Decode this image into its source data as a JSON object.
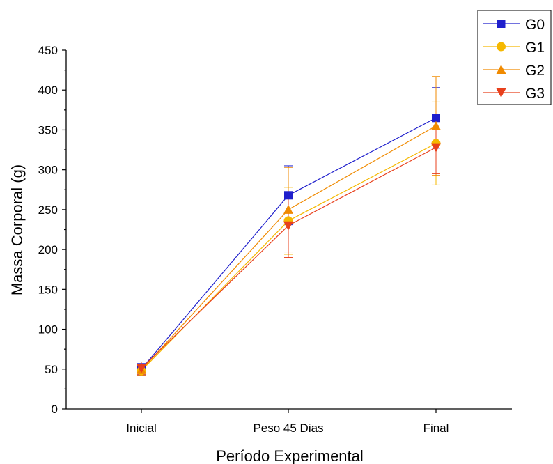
{
  "chart_data": {
    "type": "line",
    "categories": [
      "Inicial",
      "Peso 45 Dias",
      "Final"
    ],
    "xlabel": "Período Experimental",
    "ylabel": "Massa Corporal (g)",
    "ylim": [
      0,
      450
    ],
    "yticks": [
      0,
      50,
      100,
      150,
      200,
      250,
      300,
      350,
      400,
      450
    ],
    "grid": false,
    "legend_position": "top-right",
    "series": [
      {
        "name": "G0",
        "color": "#1f1fcc",
        "marker": "square",
        "values": [
          50,
          268,
          365
        ],
        "errors": [
          7,
          37,
          38
        ]
      },
      {
        "name": "G1",
        "color": "#f5b800",
        "marker": "circle",
        "values": [
          48,
          236,
          333
        ],
        "errors": [
          6,
          42,
          52
        ]
      },
      {
        "name": "G2",
        "color": "#f08a00",
        "marker": "triangle-up",
        "values": [
          49,
          250,
          355
        ],
        "errors": [
          7,
          53,
          62
        ]
      },
      {
        "name": "G3",
        "color": "#e8401c",
        "marker": "triangle-down",
        "values": [
          51,
          230,
          328
        ],
        "errors": [
          8,
          40,
          33
        ]
      }
    ]
  }
}
